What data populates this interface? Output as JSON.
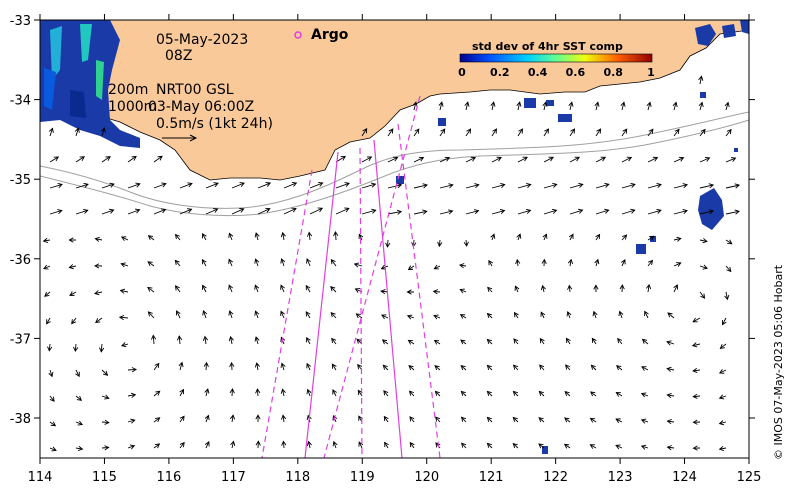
{
  "map": {
    "date": "05-May-2023",
    "time": "08Z",
    "legend_argo": "Argo",
    "depth_contours_label": "200m\n1000m",
    "product_label": "NRT00 GSL",
    "product_time": "03-May 06:00Z",
    "scale_label": "0.5m/s (1kt 24h)",
    "credit": "© IMOS 07-May-2023 05:06 Hobart",
    "colorbar": {
      "title": "std dev of 4hr SST comp",
      "ticks": [
        "0",
        "0.2",
        "0.4",
        "0.6",
        "0.8",
        "1"
      ]
    },
    "x_ticks": [
      "114",
      "115",
      "116",
      "117",
      "118",
      "119",
      "120",
      "121",
      "122",
      "123",
      "124",
      "125"
    ],
    "y_ticks": [
      "-33",
      "-34",
      "-35",
      "-36",
      "-37",
      "-38"
    ],
    "colors": {
      "land": "#f9c99a",
      "track": "#e040e0",
      "sst_blue": "#1a3aa8",
      "contour": "#a0a0a0"
    }
  }
}
